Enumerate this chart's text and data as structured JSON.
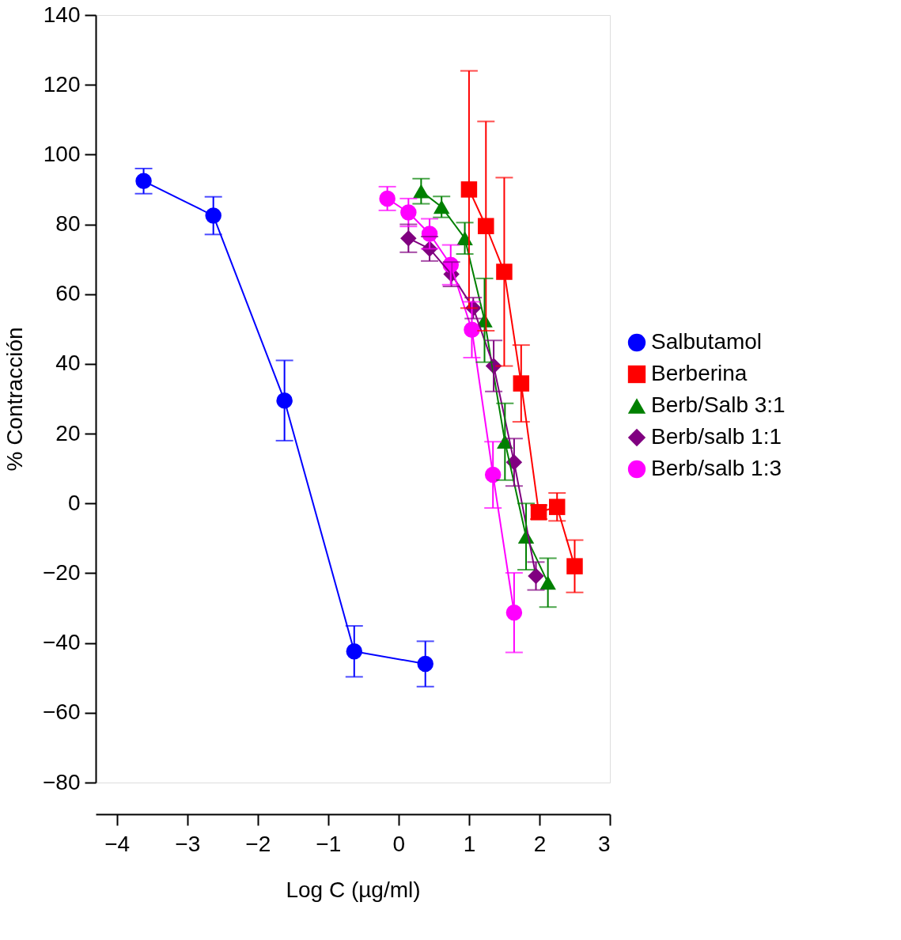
{
  "chart_data": {
    "type": "line",
    "xlabel": "Log C (µg/ml)",
    "ylabel": "% Contracción",
    "xlim": [
      -4.3,
      3
    ],
    "xticks": [
      -4,
      -3,
      -2,
      -1,
      0,
      1,
      2,
      3
    ],
    "ylim": [
      -80,
      140
    ],
    "yticks": [
      -80,
      -60,
      -40,
      -20,
      0,
      20,
      40,
      60,
      80,
      100,
      120,
      140
    ],
    "grid": false,
    "legend": "right",
    "line_style": "solid",
    "series": [
      {
        "name": "Salbutamol",
        "color": "#0000ff",
        "marker": "circle",
        "x": [
          -3.62,
          -2.63,
          -1.62,
          -0.63,
          0.38
        ],
        "values": [
          92.4,
          82.5,
          29.5,
          -42.4,
          -46
        ],
        "errors": [
          3.6,
          5.4,
          11.5,
          7.3,
          6.5
        ]
      },
      {
        "name": "Berberina",
        "color": "#ff0000",
        "marker": "square",
        "x": [
          1.0,
          1.24,
          1.5,
          1.74,
          1.99,
          2.25,
          2.5
        ],
        "values": [
          90,
          79.5,
          66.4,
          34.4,
          -2.5,
          -1,
          -18
        ],
        "errors": [
          34,
          30,
          27,
          11,
          2,
          4,
          7.5
        ]
      },
      {
        "name": "Berb/Salb 3:1",
        "color": "#008000",
        "marker": "triangle",
        "x": [
          0.32,
          0.61,
          0.94,
          1.22,
          1.51,
          1.81,
          2.12
        ],
        "values": [
          89.5,
          85,
          76,
          52.5,
          17.7,
          -9.5,
          -22.7
        ],
        "errors": [
          3.6,
          3,
          4.5,
          12,
          11,
          9.5,
          7
        ]
      },
      {
        "name": "Berb/salb 1:1",
        "color": "#800080",
        "marker": "diamond",
        "x": [
          0.14,
          0.44,
          0.75,
          1.06,
          1.35,
          1.64,
          1.95
        ],
        "values": [
          76,
          73,
          65.7,
          56,
          39.4,
          11.8,
          -20.8
        ],
        "errors": [
          4,
          3.5,
          3.5,
          3,
          7.3,
          6.8,
          4
        ]
      },
      {
        "name": "Berb/salb 1:3",
        "color": "#ff00ff",
        "marker": "circle",
        "x": [
          -0.16,
          0.14,
          0.44,
          0.74,
          1.04,
          1.34,
          1.64
        ],
        "values": [
          87.4,
          83.4,
          77.3,
          68.4,
          49.8,
          8.2,
          -31.3
        ],
        "errors": [
          3.4,
          4,
          4.3,
          5.7,
          8,
          9.5,
          11.4
        ]
      }
    ]
  }
}
